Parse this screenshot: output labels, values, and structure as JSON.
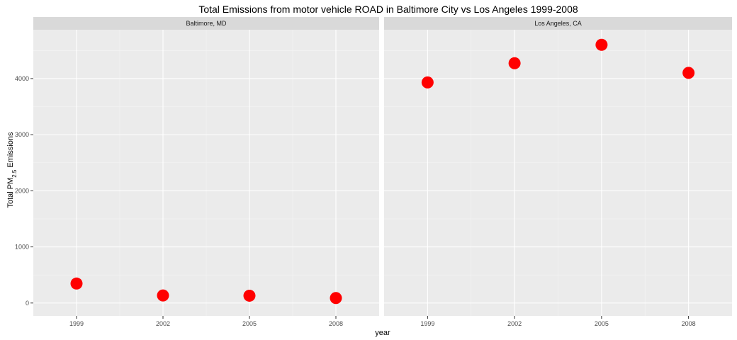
{
  "chart_data": {
    "type": "scatter",
    "title": "Total Emissions from motor vehicle ROAD in Baltimore City vs Los Angeles 1999-2008",
    "xlabel": "year",
    "ylabel": {
      "prefix": "Total PM",
      "subscript": "2.5",
      "suffix": " Emissions"
    },
    "x_ticks": [
      1999,
      2002,
      2005,
      2008
    ],
    "y_ticks": [
      0,
      1000,
      2000,
      3000,
      4000
    ],
    "xlim": [
      1997.5,
      2009.5
    ],
    "ylim": [
      -230,
      4870
    ],
    "grid": true,
    "point_color": "#ff0000",
    "panels": [
      {
        "strip_label": "Baltimore, MD",
        "x": [
          1999,
          2002,
          2005,
          2008
        ],
        "y": [
          346.8,
          134.3,
          130.4,
          88.3
        ]
      },
      {
        "strip_label": "Los Angeles, CA",
        "x": [
          1999,
          2002,
          2005,
          2008
        ],
        "y": [
          3931.1,
          4274.0,
          4601.4,
          4101.3
        ]
      }
    ]
  }
}
